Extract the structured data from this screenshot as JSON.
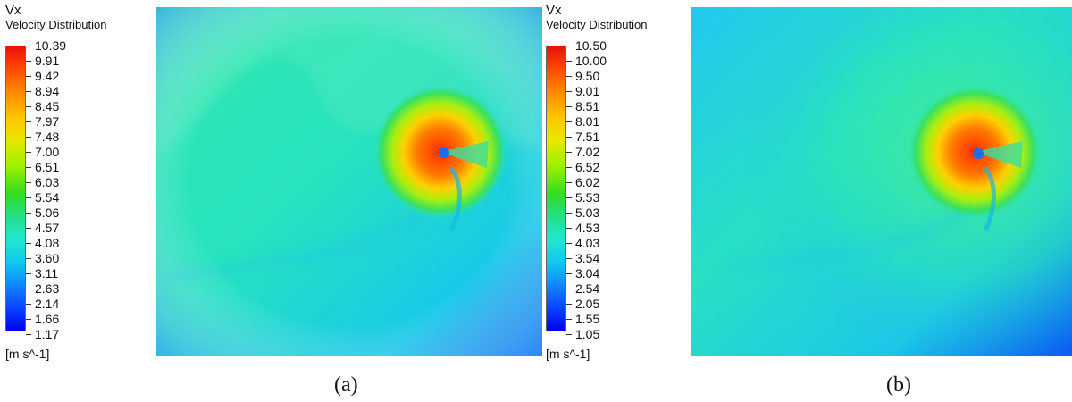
{
  "panels": [
    {
      "id": "a",
      "legend_title": "Vx",
      "legend_subtitle": "Velocity Distribution",
      "ticks": [
        "10.39",
        "9.91",
        "9.42",
        "8.94",
        "8.45",
        "7.97",
        "7.48",
        "7.00",
        "6.51",
        "6.03",
        "5.54",
        "5.06",
        "4.57",
        "4.08",
        "3.60",
        "3.11",
        "2.63",
        "2.14",
        "1.66",
        "1.17"
      ],
      "units": "[m s^-1]",
      "caption": "(a)"
    },
    {
      "id": "b",
      "legend_title": "Vx",
      "legend_subtitle": "Velocity Distribution",
      "ticks": [
        "10.50",
        "10.00",
        "9.50",
        "9.01",
        "8.51",
        "8.01",
        "7.51",
        "7.02",
        "6.52",
        "6.02",
        "5.53",
        "5.03",
        "4.53",
        "4.03",
        "3.54",
        "3.04",
        "2.54",
        "2.05",
        "1.55",
        "1.05"
      ],
      "units": "[m s^-1]",
      "caption": "(b)"
    }
  ],
  "colormap": {
    "high": "#e8100a",
    "mid": "#33dd22",
    "low": "#0000ee"
  }
}
